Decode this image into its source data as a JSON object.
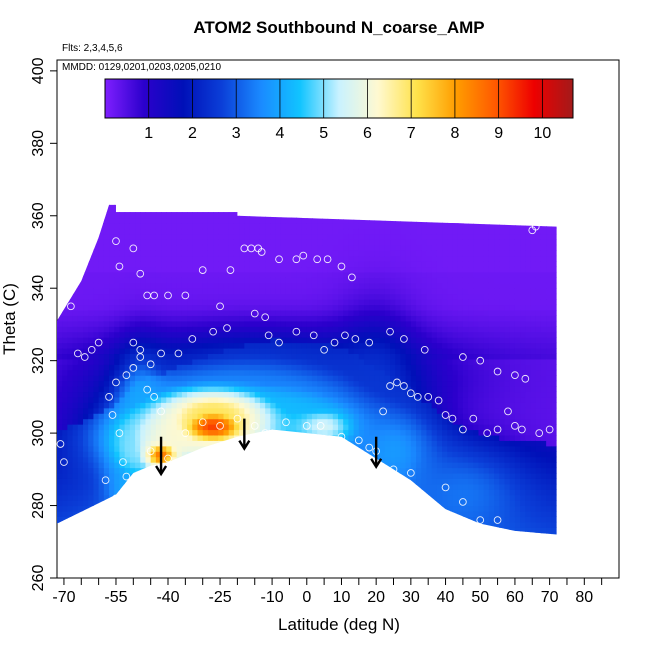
{
  "chart_data": {
    "type": "heatmap",
    "title": "ATOM2 Southbound N_coarse_AMP",
    "annotations": {
      "flights": "Flts: 2,3,4,5,6",
      "dates": "MMDD: 0129,0201,0203,0205,0210"
    },
    "xlabel": "Latitude (deg N)",
    "ylabel": "Theta (C)",
    "xlim": [
      -72,
      90
    ],
    "ylim": [
      260,
      403
    ],
    "x_ticks_labeled": [
      -70,
      -55,
      -40,
      -25,
      -10,
      0,
      10,
      20,
      30,
      40,
      50,
      60,
      70,
      80
    ],
    "x_ticks_minor": [
      -65,
      -60,
      -50,
      -45,
      -35,
      -30,
      -20,
      -15,
      -5,
      5,
      15,
      25,
      35,
      45,
      55,
      65,
      75,
      85
    ],
    "y_ticks": [
      260,
      280,
      300,
      320,
      340,
      360,
      380,
      400
    ],
    "colorbar": {
      "min": 0,
      "max": 10.7,
      "ticks": [
        1,
        2,
        3,
        4,
        5,
        6,
        7,
        8,
        9,
        10
      ],
      "colors": [
        "#7f1fff",
        "#2b00cc",
        "#0010b8",
        "#0b3fd8",
        "#1a8aff",
        "#11c4ff",
        "#c9f2ff",
        "#fff9d0",
        "#ffe24a",
        "#ff9d00",
        "#ff5a00",
        "#ee0000",
        "#a31a1a"
      ]
    },
    "domain_boundary": {
      "top": [
        [
          -72,
          331
        ],
        [
          -65,
          342
        ],
        [
          -60,
          354
        ],
        [
          -57,
          363
        ],
        [
          -55,
          363
        ],
        [
          -55,
          361
        ],
        [
          -20,
          361
        ],
        [
          -20,
          360
        ],
        [
          72,
          357
        ]
      ],
      "bottom": [
        [
          -72,
          275
        ],
        [
          -55,
          283
        ],
        [
          -50,
          289
        ],
        [
          -45,
          291
        ],
        [
          -40,
          292
        ],
        [
          -30,
          296
        ],
        [
          -20,
          299
        ],
        [
          -10,
          301
        ],
        [
          0,
          300
        ],
        [
          10,
          299
        ],
        [
          20,
          293
        ],
        [
          30,
          287
        ],
        [
          40,
          279
        ],
        [
          50,
          275
        ],
        [
          60,
          273
        ],
        [
          72,
          272
        ]
      ]
    },
    "features": [
      {
        "x": -27,
        "y": 302,
        "v": 9.2,
        "sx": 8,
        "sy": 4
      },
      {
        "x": -27,
        "y": 306,
        "v": 7.0,
        "sx": 12,
        "sy": 5
      },
      {
        "x": -42,
        "y": 294,
        "v": 8.5,
        "sx": 4,
        "sy": 3
      },
      {
        "x": -33,
        "y": 300,
        "v": 6.2,
        "sx": 18,
        "sy": 7
      },
      {
        "x": -50,
        "y": 296,
        "v": 5.0,
        "sx": 5,
        "sy": 6
      },
      {
        "x": 5,
        "y": 302,
        "v": 5.5,
        "sx": 7,
        "sy": 4
      },
      {
        "x": -5,
        "y": 306,
        "v": 4.3,
        "sx": 12,
        "sy": 6
      },
      {
        "x": -20,
        "y": 311,
        "v": 3.5,
        "sx": 22,
        "sy": 8
      },
      {
        "x": 25,
        "y": 295,
        "v": 3.8,
        "sx": 9,
        "sy": 9
      },
      {
        "x": 45,
        "y": 283,
        "v": 3.3,
        "sx": 12,
        "sy": 9
      },
      {
        "x": -48,
        "y": 308,
        "v": 4.0,
        "sx": 5,
        "sy": 10
      },
      {
        "x": -52,
        "y": 285,
        "v": 4.0,
        "sx": 4,
        "sy": 5
      },
      {
        "x": -10,
        "y": 316,
        "v": 2.4,
        "sx": 30,
        "sy": 8
      },
      {
        "x": 20,
        "y": 310,
        "v": 2.5,
        "sx": 8,
        "sy": 14
      }
    ],
    "obs_points": [
      [
        -71,
        297
      ],
      [
        -70,
        292
      ],
      [
        -68,
        335
      ],
      [
        -66,
        322
      ],
      [
        -64,
        321
      ],
      [
        -62,
        323
      ],
      [
        -60,
        325
      ],
      [
        -55,
        353
      ],
      [
        -54,
        346
      ],
      [
        -50,
        351
      ],
      [
        -48,
        344
      ],
      [
        -46,
        338
      ],
      [
        -44,
        338
      ],
      [
        -40,
        338
      ],
      [
        -35,
        338
      ],
      [
        -30,
        345
      ],
      [
        -25,
        335
      ],
      [
        -22,
        345
      ],
      [
        -18,
        351
      ],
      [
        -16,
        351
      ],
      [
        -14,
        351
      ],
      [
        -13,
        350
      ],
      [
        -8,
        348
      ],
      [
        -3,
        348
      ],
      [
        -1,
        349
      ],
      [
        3,
        348
      ],
      [
        6,
        348
      ],
      [
        10,
        346
      ],
      [
        13,
        343
      ],
      [
        -50,
        325
      ],
      [
        -48,
        323
      ],
      [
        -45,
        319
      ],
      [
        -42,
        322
      ],
      [
        -37,
        322
      ],
      [
        -33,
        326
      ],
      [
        -27,
        328
      ],
      [
        -23,
        329
      ],
      [
        -15,
        333
      ],
      [
        -12,
        332
      ],
      [
        -11,
        327
      ],
      [
        -8,
        325
      ],
      [
        -3,
        328
      ],
      [
        2,
        327
      ],
      [
        5,
        323
      ],
      [
        8,
        325
      ],
      [
        11,
        327
      ],
      [
        14,
        326
      ],
      [
        18,
        325
      ],
      [
        24,
        328
      ],
      [
        28,
        326
      ],
      [
        34,
        323
      ],
      [
        45,
        321
      ],
      [
        50,
        320
      ],
      [
        55,
        317
      ],
      [
        60,
        316
      ],
      [
        63,
        315
      ],
      [
        -55,
        314
      ],
      [
        -52,
        316
      ],
      [
        -50,
        318
      ],
      [
        -48,
        321
      ],
      [
        -46,
        312
      ],
      [
        -44,
        310
      ],
      [
        -42,
        306
      ],
      [
        -57,
        310
      ],
      [
        -56,
        305
      ],
      [
        -54,
        300
      ],
      [
        -53,
        292
      ],
      [
        -52,
        288
      ],
      [
        -50,
        285
      ],
      [
        -55,
        282
      ],
      [
        -45,
        295
      ],
      [
        -40,
        293
      ],
      [
        -35,
        300
      ],
      [
        -30,
        303
      ],
      [
        -25,
        302
      ],
      [
        -20,
        304
      ],
      [
        -15,
        302
      ],
      [
        -12,
        300
      ],
      [
        -6,
        303
      ],
      [
        0,
        302
      ],
      [
        4,
        302
      ],
      [
        10,
        299
      ],
      [
        15,
        298
      ],
      [
        18,
        296
      ],
      [
        20,
        295
      ],
      [
        22,
        306
      ],
      [
        24,
        313
      ],
      [
        26,
        314
      ],
      [
        28,
        313
      ],
      [
        30,
        311
      ],
      [
        32,
        310
      ],
      [
        35,
        310
      ],
      [
        38,
        309
      ],
      [
        40,
        305
      ],
      [
        42,
        304
      ],
      [
        45,
        301
      ],
      [
        48,
        304
      ],
      [
        52,
        300
      ],
      [
        55,
        301
      ],
      [
        58,
        306
      ],
      [
        60,
        302
      ],
      [
        62,
        301
      ],
      [
        67,
        300
      ],
      [
        70,
        301
      ],
      [
        -58,
        287
      ],
      [
        25,
        290
      ],
      [
        30,
        289
      ],
      [
        40,
        285
      ],
      [
        45,
        281
      ],
      [
        50,
        276
      ],
      [
        55,
        276
      ],
      [
        65,
        356
      ],
      [
        66,
        357
      ]
    ],
    "arrows": [
      {
        "x": -42,
        "y_from": 299,
        "y_to": 289
      },
      {
        "x": -18,
        "y_from": 304,
        "y_to": 296
      },
      {
        "x": 20,
        "y_from": 299,
        "y_to": 291
      }
    ]
  }
}
